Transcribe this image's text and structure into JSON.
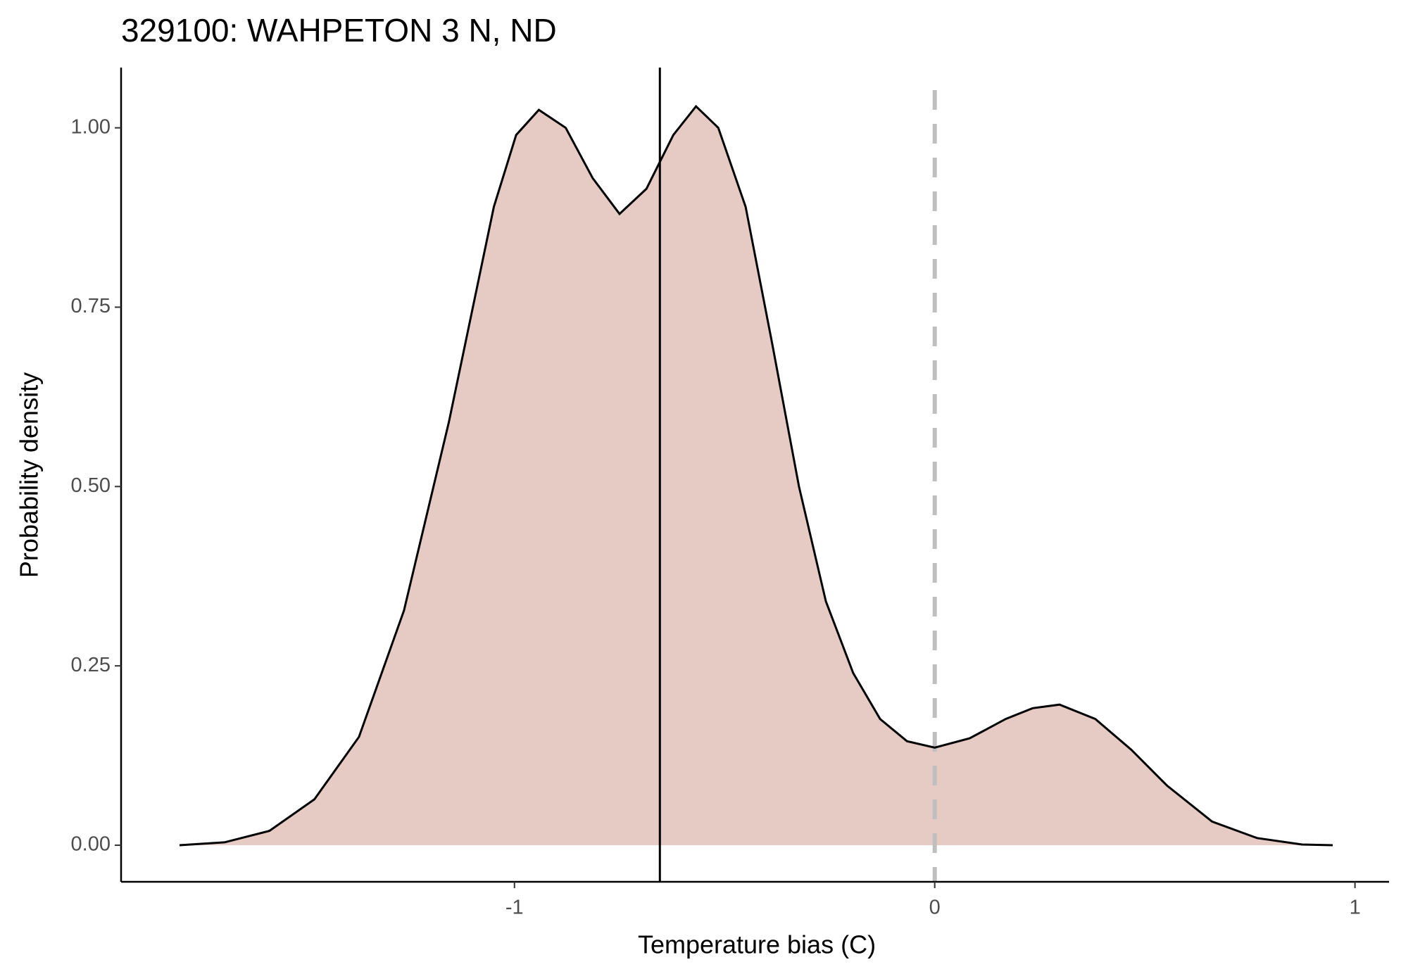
{
  "chart_data": {
    "type": "density",
    "title": "329100: WAHPETON 3 N, ND",
    "x_label": "Temperature bias (C)",
    "y_label": "Probability density",
    "x": [
      -1.797,
      -1.69,
      -1.583,
      -1.476,
      -1.37,
      -1.263,
      -1.156,
      -1.049,
      -0.996,
      -0.942,
      -0.878,
      -0.814,
      -0.75,
      -0.686,
      -0.622,
      -0.568,
      -0.515,
      -0.45,
      -0.387,
      -0.323,
      -0.259,
      -0.194,
      -0.13,
      -0.066,
      0,
      0.083,
      0.169,
      0.233,
      0.297,
      0.382,
      0.468,
      0.553,
      0.66,
      0.767,
      0.874,
      0.947
    ],
    "values": [
      0,
      0.004,
      0.02,
      0.064,
      0.151,
      0.327,
      0.59,
      0.89,
      0.99,
      1.025,
      1.0,
      0.93,
      0.88,
      0.915,
      0.99,
      1.03,
      1.0,
      0.89,
      0.7,
      0.5,
      0.34,
      0.24,
      0.176,
      0.145,
      0.136,
      0.149,
      0.176,
      0.191,
      0.196,
      0.176,
      0.133,
      0.083,
      0.033,
      0.01,
      0.001,
      0
    ],
    "fill_color": "#e6cac4",
    "line_color": "#000000",
    "reference_lines": [
      {
        "x": -0.654,
        "color": "#000000",
        "dashed": false
      },
      {
        "x": 0,
        "color": "#bfbfbf",
        "dashed": true
      }
    ],
    "xlim": [
      -1.936,
      1.081
    ],
    "ylim": [
      -0.051,
      1.084
    ],
    "xticks": [
      -1,
      0,
      1
    ],
    "yticks": [
      {
        "value": 0,
        "label": "0.00"
      },
      {
        "value": 0.25,
        "label": "0.25"
      },
      {
        "value": 0.5,
        "label": "0.50"
      },
      {
        "value": 0.75,
        "label": "0.75"
      },
      {
        "value": 1,
        "label": "1.00"
      }
    ],
    "grid": false
  }
}
